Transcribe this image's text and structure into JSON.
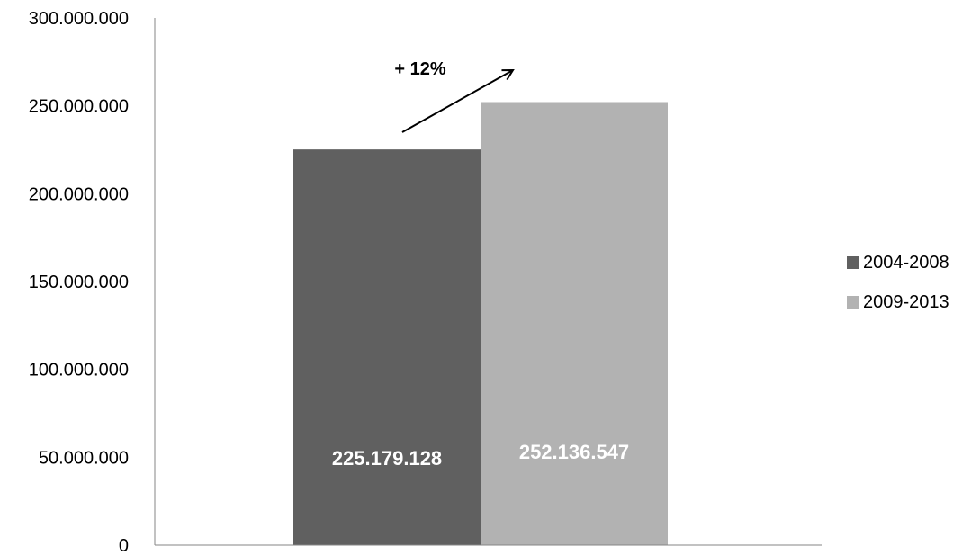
{
  "chart_data": {
    "type": "bar",
    "categories": [
      ""
    ],
    "series": [
      {
        "name": "2004-2008",
        "values": [
          225179128
        ],
        "color": "#606060",
        "value_label": "225.179.128"
      },
      {
        "name": "2009-2013",
        "values": [
          252136547
        ],
        "color": "#b2b2b2",
        "value_label": "252.136.547"
      }
    ],
    "ylim": [
      0,
      300000000
    ],
    "yticks": [
      0,
      50000000,
      100000000,
      150000000,
      200000000,
      250000000,
      300000000
    ],
    "ytick_labels": [
      "0",
      "50.000.000",
      "100.000.000",
      "150.000.000",
      "200.000.000",
      "250.000.000",
      "300.000.000"
    ],
    "title": "",
    "xlabel": "",
    "ylabel": "",
    "grid": false,
    "legend_position": "right",
    "annotation": {
      "text": "+ 12%",
      "arrow": "up-right"
    }
  }
}
